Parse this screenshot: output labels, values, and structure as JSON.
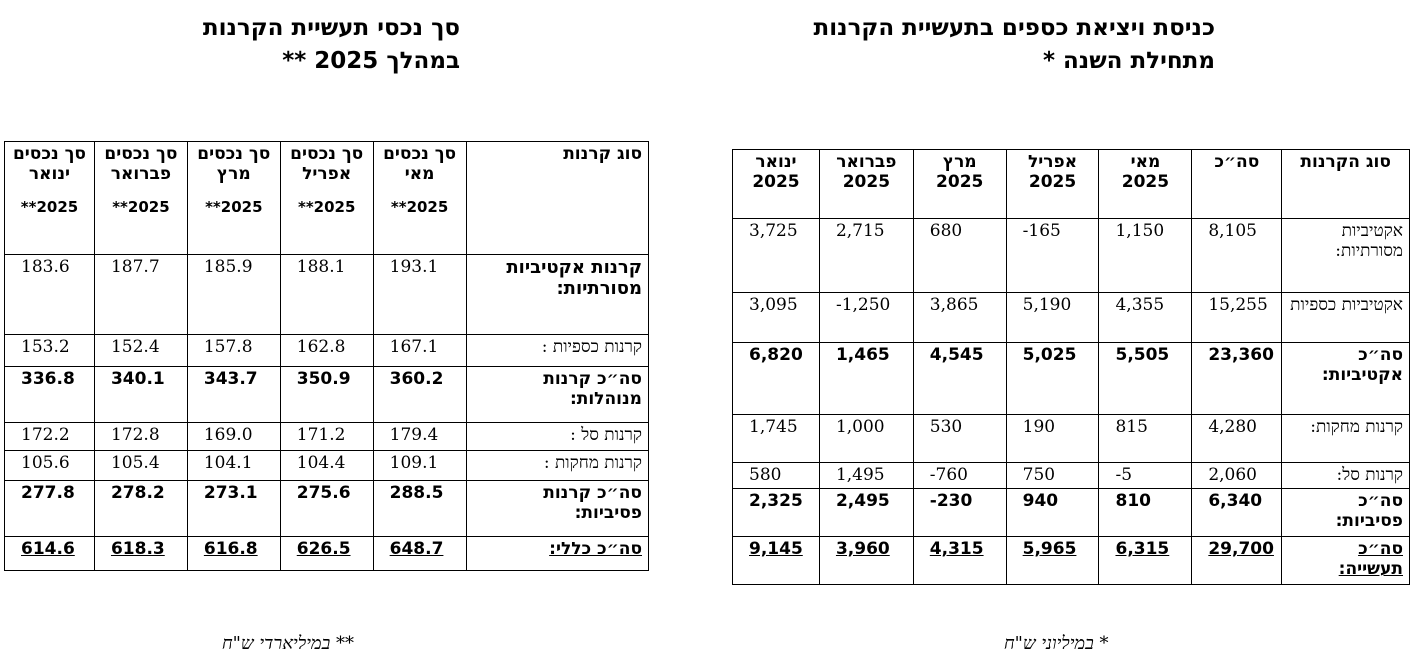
{
  "left_title": {
    "line1": "סך נכסי תעשיית הקרנות",
    "line2": "במהלך 2025 **"
  },
  "right_title": {
    "line1": "כניסת ויציאת כספים בתעשיית הקרנות",
    "line2": "מתחילת השנה *"
  },
  "left_table": {
    "headers": [
      "סוג קרנות",
      "סך נכסים מאי",
      "סך נכסים אפריל",
      "סך נכסים מרץ",
      "סך נכסים פברואר",
      "סך נכסים ינואר"
    ],
    "year_tag": "2025**",
    "rows": [
      {
        "label": "קרנות אקטיביות מסורתיות:",
        "values": [
          "193.1",
          "188.1",
          "185.9",
          "187.7",
          "183.6"
        ]
      },
      {
        "label": "קרנות כספיות :",
        "values": [
          "167.1",
          "162.8",
          "157.8",
          "152.4",
          "153.2"
        ]
      },
      {
        "label": "סה״כ קרנות מנוהלות:",
        "values": [
          "360.2",
          "350.9",
          "343.7",
          "340.1",
          "336.8"
        ]
      },
      {
        "label": "קרנות סל :",
        "values": [
          "179.4",
          "171.2",
          "169.0",
          "172.8",
          "172.2"
        ]
      },
      {
        "label": "קרנות מחקות :",
        "values": [
          "109.1",
          "104.4",
          "104.1",
          "105.4",
          "105.6"
        ]
      },
      {
        "label": "סה״כ קרנות פסיביות:",
        "values": [
          "288.5",
          "275.6",
          "273.1",
          "278.2",
          "277.8"
        ]
      },
      {
        "label": "סה״כ כללי:",
        "values": [
          "648.7",
          "626.5",
          "616.8",
          "618.3",
          "614.6"
        ]
      }
    ]
  },
  "right_table": {
    "headers": [
      "סוג הקרנות",
      "סה״כ",
      "מאי 2025",
      "אפריל 2025",
      "מרץ 2025",
      "פברואר 2025",
      "ינואר 2025"
    ],
    "rows": [
      {
        "label": "אקטיביות מסורתיות:",
        "values": [
          "8,105",
          "1,150",
          "-165",
          "680",
          "2,715",
          "3,725"
        ]
      },
      {
        "label": "אקטיביות כספיות",
        "values": [
          "15,255",
          "4,355",
          "5,190",
          "3,865",
          "-1,250",
          "3,095"
        ]
      },
      {
        "label": "סה״כ אקטיביות:",
        "values": [
          "23,360",
          "5,505",
          "5,025",
          "4,545",
          "1,465",
          "6,820"
        ]
      },
      {
        "label": "קרנות מחקות:",
        "values": [
          "4,280",
          "815",
          "190",
          "530",
          "1,000",
          "1,745"
        ]
      },
      {
        "label": "קרנות סל:",
        "values": [
          "2,060",
          "-5",
          "750",
          "-760",
          "1,495",
          "580"
        ]
      },
      {
        "label": "סה״כ פסיביות:",
        "values": [
          "6,340",
          "810",
          "940",
          "-230",
          "2,495",
          "2,325"
        ]
      },
      {
        "label": "סה״כ תעשייה:",
        "values": [
          "29,700",
          "6,315",
          "5,965",
          "4,315",
          "3,960",
          "9,145"
        ]
      }
    ]
  },
  "left_note": "** במיליארדי ש\"ח",
  "right_note": "* במיליוני ש\"ח"
}
